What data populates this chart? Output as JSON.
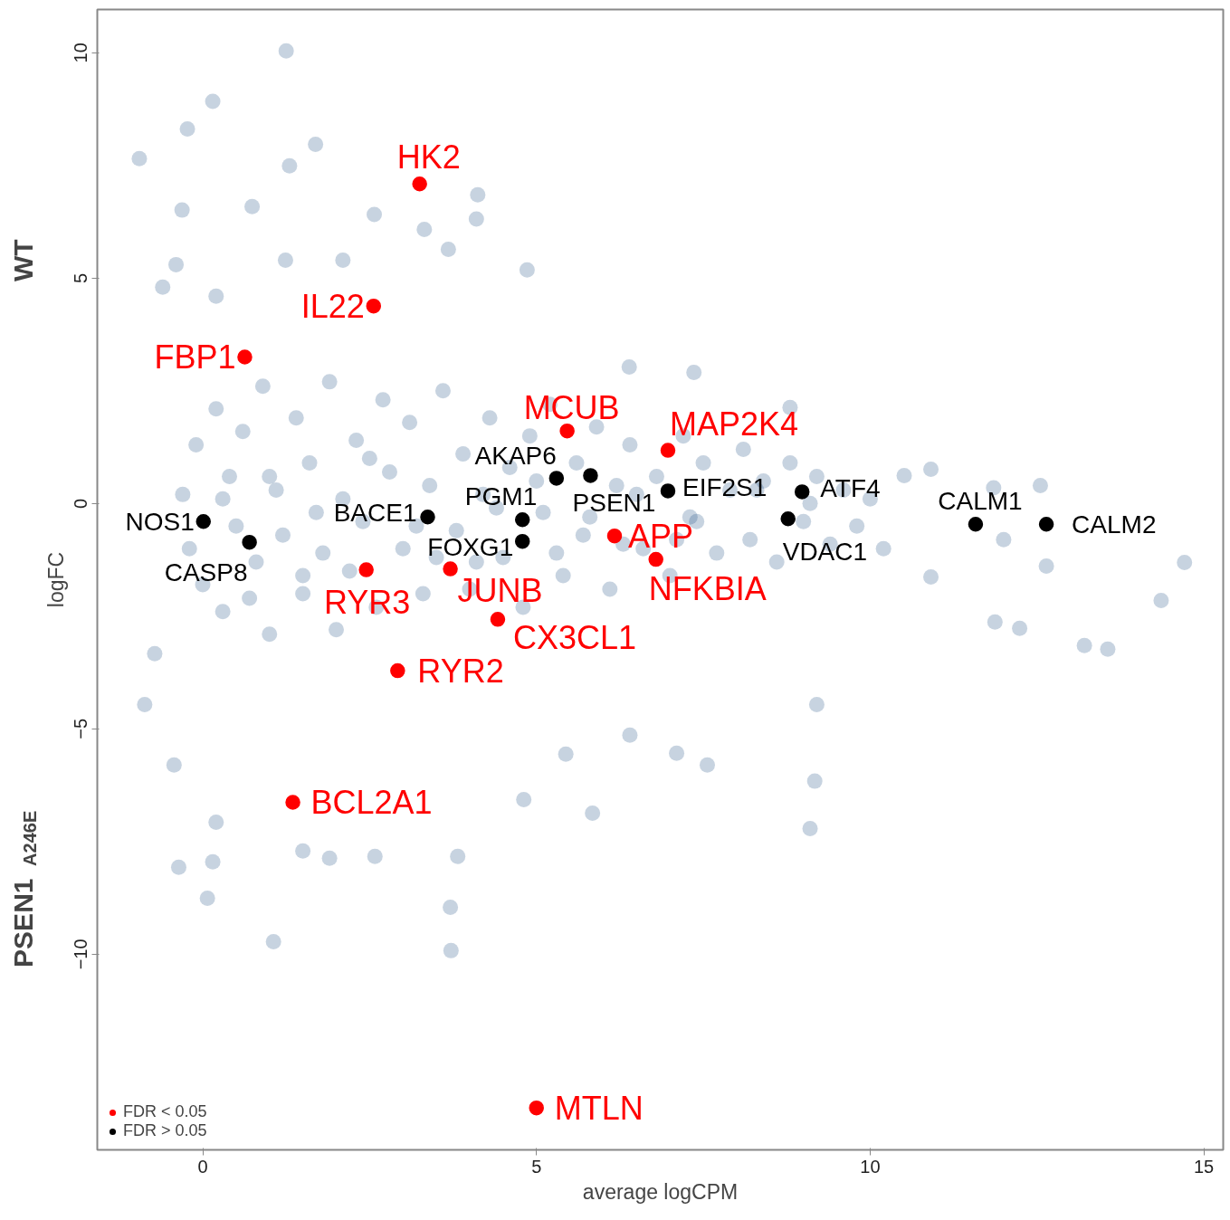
{
  "chart_data": {
    "type": "scatter",
    "xlabel": "average logCPM",
    "ylabel": "logFC",
    "xlim": [
      -1.58,
      15.29
    ],
    "ylim": [
      -14.34,
      10.96
    ],
    "xticks": [
      0,
      5,
      10,
      15
    ],
    "yticks": [
      -10,
      -5,
      0,
      5,
      10
    ],
    "grid": false,
    "legend": "bottom left",
    "marker": "circle",
    "series": [
      {
        "color": "#1f4e85",
        "x": [
          -0.3,
          -0.2,
          -0.1,
          0.0,
          0.2,
          0.3,
          0.4,
          0.5,
          0.6,
          0.8,
          0.9,
          1.0,
          1.1,
          1.2,
          1.4,
          1.5,
          1.6,
          1.8,
          1.9,
          2.0,
          2.1,
          2.3,
          2.4,
          2.6,
          2.7,
          2.8,
          3.0,
          3.1,
          3.3,
          3.4,
          3.6,
          3.8,
          3.9,
          4.0,
          4.2,
          4.3,
          4.5,
          4.6,
          4.8,
          4.9,
          5.1,
          5.2,
          5.4,
          5.6,
          5.7,
          5.9,
          6.1,
          6.2,
          6.4,
          6.6,
          6.8,
          7.0,
          7.2,
          7.3,
          7.5,
          7.7,
          7.9,
          8.1,
          8.2,
          8.4,
          8.6,
          8.8,
          9.0,
          9.2,
          9.4,
          9.6,
          9.8,
          10.0,
          10.2,
          0.3,
          1.0,
          1.7,
          2.5,
          3.2,
          4.4,
          5.0,
          5.8,
          6.5,
          7.4,
          8.3,
          9.1,
          0.7,
          1.5,
          2.2,
          3.5,
          4.1,
          5.3,
          6.3,
          7.1,
          1.25,
          0.15,
          -0.95,
          -0.23,
          1.69,
          1.3,
          4.12,
          4.1,
          2.57,
          0.74,
          -0.31,
          3.32,
          3.68,
          4.86,
          -0.4,
          1.24,
          2.1,
          -0.6,
          0.2,
          6.39,
          7.36,
          8.8,
          10.51,
          10.91,
          11.85,
          12.55,
          14.71,
          14.36,
          13.56,
          13.21,
          12.24,
          11.87,
          12.64,
          10.91,
          12.0,
          1.06,
          3.72,
          3.71,
          0.07,
          -0.36,
          0.15,
          0.2,
          1.5,
          1.9,
          2.58,
          3.82,
          4.81,
          5.84,
          9.1,
          9.17,
          9.2,
          7.56,
          7.1,
          6.4,
          5.44,
          -0.87,
          -0.72,
          -0.43
        ],
        "values": [
          0.2,
          -1.0,
          1.3,
          -1.8,
          2.1,
          -2.4,
          0.6,
          -0.5,
          1.6,
          -1.3,
          2.6,
          -2.9,
          0.3,
          -0.7,
          1.9,
          -2.0,
          0.9,
          -1.1,
          2.7,
          -2.8,
          0.1,
          1.4,
          -0.4,
          -2.3,
          2.3,
          0.7,
          -1.0,
          1.8,
          -2.0,
          0.4,
          2.5,
          -0.6,
          1.1,
          -1.9,
          0.2,
          1.9,
          -1.2,
          0.8,
          -2.3,
          1.5,
          -0.2,
          2.2,
          -1.6,
          0.9,
          -0.7,
          1.7,
          -1.9,
          0.4,
          1.3,
          -1.0,
          0.6,
          -1.6,
          1.5,
          -0.3,
          0.9,
          -1.1,
          0.3,
          1.2,
          -0.8,
          0.5,
          -1.3,
          0.9,
          -0.4,
          0.6,
          -0.9,
          0.3,
          -0.5,
          0.1,
          -1.0,
          0.1,
          0.6,
          -0.2,
          1.0,
          -0.5,
          -0.1,
          0.5,
          -0.3,
          0.2,
          -0.4,
          0.3,
          0.0,
          -2.1,
          -1.6,
          -1.5,
          -1.2,
          -1.3,
          -1.1,
          -0.9,
          -0.8,
          10.04,
          8.92,
          7.65,
          8.31,
          7.97,
          7.49,
          6.85,
          6.31,
          6.41,
          6.59,
          6.51,
          6.08,
          5.64,
          5.18,
          5.3,
          5.4,
          5.4,
          4.8,
          4.6,
          3.03,
          2.91,
          2.13,
          0.62,
          0.76,
          0.35,
          0.4,
          -1.31,
          -2.15,
          -3.23,
          -3.15,
          -2.77,
          -2.63,
          -1.39,
          -1.63,
          -0.8,
          -9.72,
          -9.92,
          -8.96,
          -8.76,
          -8.07,
          -7.95,
          -7.07,
          -7.71,
          -7.87,
          -7.83,
          -7.83,
          -6.57,
          -6.87,
          -7.21,
          -6.16,
          -4.46,
          -5.8,
          -5.54,
          -5.14,
          -5.56,
          -4.46,
          -3.33,
          -5.8
        ]
      },
      {
        "name": "FDR < 0.05",
        "color": "#ff0000",
        "x": [
          3.25,
          2.56,
          0.63,
          5.46,
          6.97,
          6.17,
          6.79,
          3.71,
          2.45,
          4.42,
          2.92,
          1.35,
          5.0
        ],
        "values": [
          7.09,
          4.38,
          3.25,
          1.61,
          1.18,
          -0.72,
          -1.24,
          -1.45,
          -1.47,
          -2.57,
          -3.71,
          -6.63,
          -13.41
        ]
      },
      {
        "name": "FDR > 0.05",
        "color": "#000000",
        "x": [
          0.01,
          0.7,
          3.37,
          4.79,
          4.79,
          5.3,
          5.81,
          6.97,
          8.98,
          8.77,
          11.58,
          12.64
        ],
        "values": [
          -0.4,
          -0.86,
          -0.3,
          -0.36,
          -0.84,
          0.56,
          0.62,
          0.28,
          0.26,
          -0.34,
          -0.46,
          -0.46
        ]
      }
    ],
    "annotations": [
      {
        "text": "HK2",
        "x": 3.25,
        "y": 7.09
      },
      {
        "text": "IL22",
        "x": 2.56,
        "y": 4.38
      },
      {
        "text": "FBP1",
        "x": 0.63,
        "y": 3.25
      },
      {
        "text": "MCUB",
        "x": 5.46,
        "y": 1.61
      },
      {
        "text": "MAP2K4",
        "x": 6.97,
        "y": 1.18
      },
      {
        "text": "APP",
        "x": 6.17,
        "y": -0.72
      },
      {
        "text": "NFKBIA",
        "x": 6.79,
        "y": -1.24
      },
      {
        "text": "JUNB",
        "x": 3.71,
        "y": -1.45
      },
      {
        "text": "RYR3",
        "x": 2.45,
        "y": -1.47
      },
      {
        "text": "CX3CL1",
        "x": 4.42,
        "y": -2.57
      },
      {
        "text": "RYR2",
        "x": 2.92,
        "y": -3.71
      },
      {
        "text": "BCL2A1",
        "x": 1.35,
        "y": -6.63
      },
      {
        "text": "MTLN",
        "x": 5.0,
        "y": -13.41
      },
      {
        "text": "NOS1",
        "x": 0.01,
        "y": -0.4
      },
      {
        "text": "CASP8",
        "x": 0.7,
        "y": -0.86
      },
      {
        "text": "BACE1",
        "x": 3.37,
        "y": -0.3
      },
      {
        "text": "PGM1",
        "x": 4.79,
        "y": -0.36
      },
      {
        "text": "FOXG1",
        "x": 4.79,
        "y": -0.84
      },
      {
        "text": "AKAP6",
        "x": 5.3,
        "y": 0.56
      },
      {
        "text": "PSEN1",
        "x": 5.81,
        "y": 0.62
      },
      {
        "text": "EIF2S1",
        "x": 6.97,
        "y": 0.28
      },
      {
        "text": "ATF4",
        "x": 8.98,
        "y": 0.26
      },
      {
        "text": "VDAC1",
        "x": 8.77,
        "y": -0.34
      },
      {
        "text": "CALM1",
        "x": 11.58,
        "y": -0.46
      },
      {
        "text": "CALM2",
        "x": 12.64,
        "y": -0.46
      },
      "WT",
      "PSEN1$_{A246E}$"
    ]
  }
}
